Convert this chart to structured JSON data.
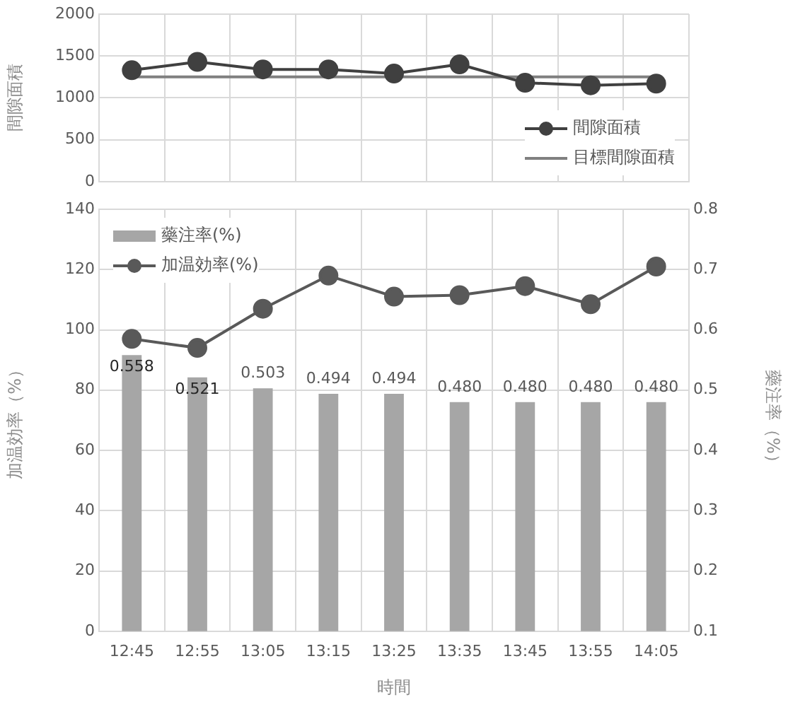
{
  "chart_data": [
    {
      "type": "line",
      "ylabel": "間隙面積",
      "categories": [
        null,
        null,
        null,
        null,
        null,
        null,
        null,
        null,
        null
      ],
      "series": [
        {
          "name": "間隙面積",
          "color": "#404040",
          "values": [
            1330,
            1430,
            1340,
            1340,
            1290,
            1400,
            1180,
            1150,
            1170
          ]
        },
        {
          "name": "目標間隙面積",
          "color": "#808080",
          "marker": "none",
          "values": [
            1250,
            1250,
            1250,
            1250,
            1250,
            1250,
            1250,
            1250,
            1250
          ]
        }
      ],
      "ylim": [
        0,
        2000
      ],
      "yticks": [
        0,
        500,
        1000,
        1500,
        2000
      ],
      "grid": true,
      "legend": "bottom right",
      "marker": "circle",
      "tick_labels": "y"
    },
    {
      "type": "bar",
      "xlabel": "時間",
      "ylabel": "加温効率（%）",
      "y2label": "藥注率（%）",
      "categories": [
        "12:45",
        "12:55",
        "13:05",
        "13:15",
        "13:25",
        "13:35",
        "13:45",
        "13:55",
        "14:05"
      ],
      "series": [
        {
          "name": "藥注率(%)",
          "color": "#a6a6a6",
          "axis": "y2",
          "values": [
            0.558,
            0.521,
            0.503,
            0.494,
            0.494,
            0.48,
            0.48,
            0.48,
            0.48
          ],
          "value_labels": [
            "0.558",
            "0.521",
            "0.503",
            "0.494",
            "0.494",
            "0.480",
            "0.480",
            "0.480",
            "0.480"
          ]
        },
        {
          "name": "加温効率(%)",
          "type": "line",
          "color": "#595959",
          "values": [
            97,
            94,
            107,
            118,
            111,
            111.5,
            114.5,
            108.5,
            121
          ]
        }
      ],
      "ylim": [
        0,
        140
      ],
      "yticks": [
        0,
        20,
        40,
        60,
        80,
        100,
        120,
        140
      ],
      "y2lim": [
        0.1,
        0.8
      ],
      "y2ticks": [
        0.1,
        0.2,
        0.3,
        0.4,
        0.5,
        0.6,
        0.7,
        0.8
      ],
      "grid": true,
      "legend": "top left",
      "marker": "circle"
    }
  ]
}
